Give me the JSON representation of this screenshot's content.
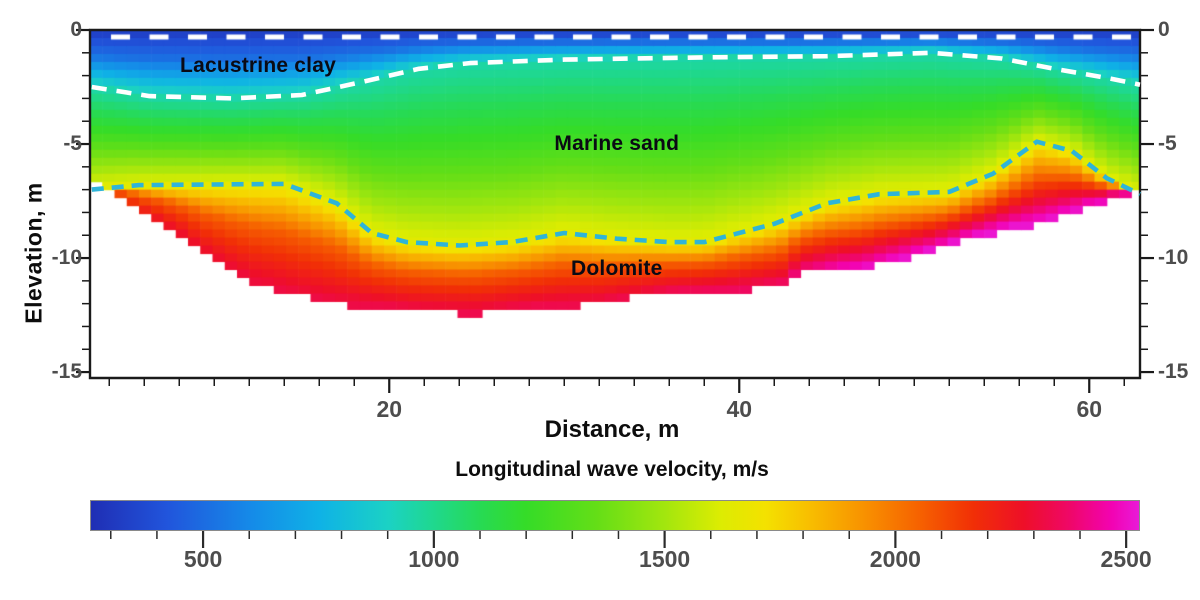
{
  "chart_data": {
    "type": "heatmap",
    "title": "",
    "xlabel": "Distance, m",
    "ylabel": "Elevation, m",
    "colorbar_label": "Longitudinal wave velocity, m/s",
    "x_range_m": [
      2.9,
      62.9
    ],
    "elevation_range_m": [
      0,
      -15.26
    ],
    "x_ticks": [
      20,
      40,
      60
    ],
    "x_minor_step_m": 2,
    "y_ticks": [
      0,
      -5,
      -10,
      -15
    ],
    "y_minor_step_m": 1,
    "colorbar_ticks": [
      500,
      1000,
      1500,
      2000,
      2500
    ],
    "colorbar_minor_step": 100,
    "velocity_range_ms": [
      255,
      2530
    ],
    "colormap_stops": [
      [
        255,
        "#1f2eb4"
      ],
      [
        420,
        "#2155dc"
      ],
      [
        600,
        "#158ae8"
      ],
      [
        750,
        "#0fb2e6"
      ],
      [
        900,
        "#1bd2c4"
      ],
      [
        1000,
        "#1fd88e"
      ],
      [
        1100,
        "#27da54"
      ],
      [
        1200,
        "#35dc28"
      ],
      [
        1350,
        "#63de17"
      ],
      [
        1500,
        "#a2e60e"
      ],
      [
        1620,
        "#dcec02"
      ],
      [
        1720,
        "#f4e100"
      ],
      [
        1820,
        "#f8bc00"
      ],
      [
        1930,
        "#f89300"
      ],
      [
        2050,
        "#f66300"
      ],
      [
        2170,
        "#f12f06"
      ],
      [
        2280,
        "#ee0f28"
      ],
      [
        2380,
        "#ef0768"
      ],
      [
        2470,
        "#f203b2"
      ],
      [
        2530,
        "#e91ad8"
      ]
    ],
    "annotations": [
      {
        "text": "Lacustrine clay",
        "x_m": 12.5,
        "elevation_m": -1.6
      },
      {
        "text": "Marine sand",
        "x_m": 33.0,
        "elevation_m": -5.0
      },
      {
        "text": "Dolomite",
        "x_m": 33.0,
        "elevation_m": -10.5
      }
    ],
    "boundaries": {
      "clay_sand": {
        "label": "Lacustrine clay / Marine sand boundary",
        "style": "dashed",
        "color": "#ffffff",
        "points": [
          [
            3,
            -2.5
          ],
          [
            6.3,
            -2.9
          ],
          [
            11,
            -3.0
          ],
          [
            15,
            -2.85
          ],
          [
            18.3,
            -2.3
          ],
          [
            21.7,
            -1.7
          ],
          [
            24.6,
            -1.45
          ],
          [
            30,
            -1.3
          ],
          [
            38,
            -1.2
          ],
          [
            45,
            -1.15
          ],
          [
            51,
            -1.0
          ],
          [
            55,
            -1.25
          ],
          [
            58,
            -1.7
          ],
          [
            61,
            -2.1
          ],
          [
            62.9,
            -2.4
          ]
        ]
      },
      "sand_dolomite": {
        "label": "Marine sand / Dolomite boundary",
        "style": "dashed",
        "color": "#2fb4d8",
        "points": [
          [
            3,
            -7.0
          ],
          [
            5.7,
            -6.8
          ],
          [
            14,
            -6.75
          ],
          [
            17,
            -7.6
          ],
          [
            19,
            -8.9
          ],
          [
            21,
            -9.3
          ],
          [
            24,
            -9.45
          ],
          [
            27,
            -9.3
          ],
          [
            30,
            -8.9
          ],
          [
            33,
            -9.15
          ],
          [
            36,
            -9.3
          ],
          [
            38,
            -9.3
          ],
          [
            42,
            -8.5
          ],
          [
            45,
            -7.6
          ],
          [
            48,
            -7.2
          ],
          [
            52,
            -7.1
          ],
          [
            54.5,
            -6.3
          ],
          [
            57,
            -4.9
          ],
          [
            59,
            -5.3
          ],
          [
            61,
            -6.5
          ],
          [
            62.9,
            -7.2
          ]
        ]
      }
    },
    "data_bottom_edge": [
      [
        3,
        -6.4
      ],
      [
        4,
        -7.0
      ],
      [
        5.2,
        -7.6
      ],
      [
        6.5,
        -8.1
      ],
      [
        8,
        -8.8
      ],
      [
        9.5,
        -9.7
      ],
      [
        11,
        -10.4
      ],
      [
        12.5,
        -11.0
      ],
      [
        14.5,
        -11.5
      ],
      [
        17,
        -11.9
      ],
      [
        20,
        -12.1
      ],
      [
        22,
        -12.25
      ],
      [
        25,
        -12.35
      ],
      [
        27,
        -12.2
      ],
      [
        29,
        -12.05
      ],
      [
        32,
        -11.9
      ],
      [
        34,
        -11.6
      ],
      [
        36,
        -11.4
      ],
      [
        40,
        -11.3
      ],
      [
        42.5,
        -11.2
      ],
      [
        43.5,
        -10.5
      ],
      [
        47,
        -10.4
      ],
      [
        49,
        -10.0
      ],
      [
        51,
        -9.6
      ],
      [
        53,
        -9.1
      ],
      [
        55,
        -8.7
      ],
      [
        57,
        -8.4
      ],
      [
        58.5,
        -8.0
      ],
      [
        60,
        -7.6
      ],
      [
        61.5,
        -7.2
      ],
      [
        62.9,
        -7.0
      ]
    ],
    "bottom_velocity_ms": [
      [
        3,
        2150
      ],
      [
        8,
        2280
      ],
      [
        14,
        2320
      ],
      [
        20,
        2330
      ],
      [
        27,
        2340
      ],
      [
        34,
        2330
      ],
      [
        40,
        2360
      ],
      [
        44,
        2420
      ],
      [
        46,
        2490
      ],
      [
        50,
        2515
      ],
      [
        56,
        2520
      ],
      [
        60,
        2500
      ],
      [
        62.9,
        2430
      ]
    ],
    "velocity_profile": {
      "surface_ms": 310,
      "upper_clay_ms": 520,
      "clay_bottom_ms": 950,
      "sand_mid_ms": 1230,
      "dolomite_top_ms": 1650,
      "dolomite_mid_ms": 2060
    },
    "surface_markers": {
      "style": "white dashes along surface",
      "spacing_m": 2.2,
      "depth_m": 0.25
    }
  }
}
